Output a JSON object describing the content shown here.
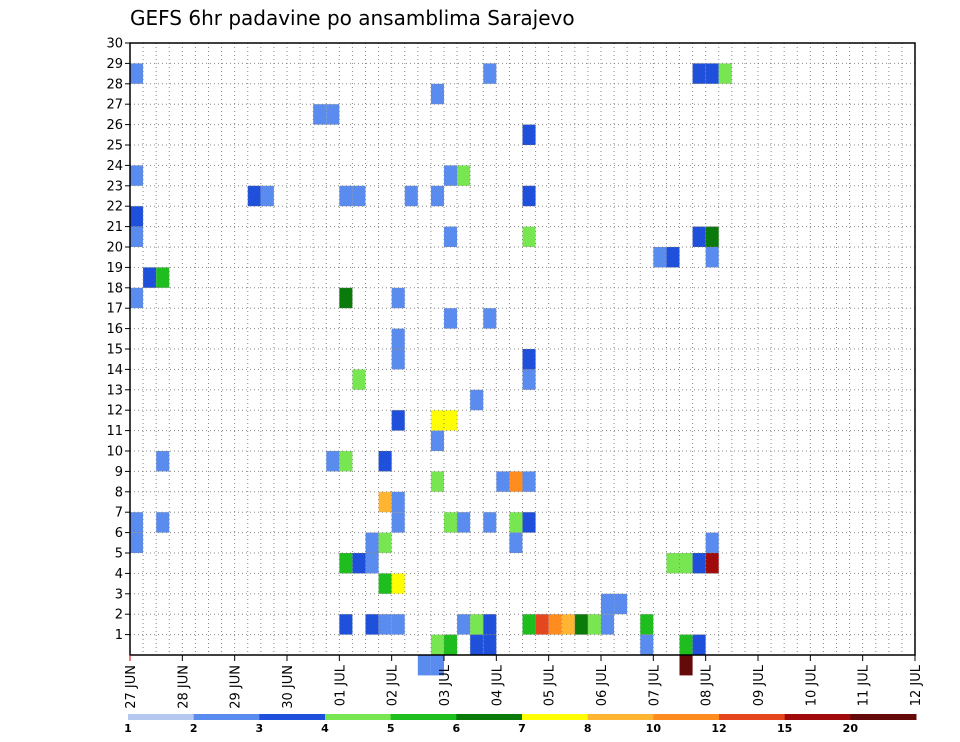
{
  "chart_data": {
    "type": "heatmap",
    "title": "GEFS 6hr padavine po ansamblima Sarajevo",
    "y_tick_labels": [
      "1",
      "2",
      "3",
      "4",
      "5",
      "6",
      "7",
      "8",
      "9",
      "10",
      "11",
      "12",
      "13",
      "14",
      "15",
      "16",
      "17",
      "18",
      "19",
      "20",
      "21",
      "22",
      "23",
      "24",
      "25",
      "26",
      "27",
      "28",
      "29",
      "30"
    ],
    "ylim": [
      0,
      30
    ],
    "x_tick_labels": [
      "27 JUN",
      "28 JUN",
      "29 JUN",
      "30 JUN",
      "01 JUL",
      "02 JUL",
      "03 JUL",
      "04 JUL",
      "05 JUL",
      "06 JUL",
      "07 JUL",
      "08 JUL",
      "09 JUL",
      "10 JUL",
      "11 JUL",
      "12 JUL"
    ],
    "x_steps_per_day": 4,
    "x_range_steps": [
      0,
      60
    ],
    "grid": true,
    "colorbar": {
      "labels": [
        "1",
        "2",
        "3",
        "4",
        "5",
        "6",
        "7",
        "8",
        "10",
        "12",
        "15",
        "20"
      ],
      "colors": [
        "#b4c8f0",
        "#5a8cf0",
        "#1e50dc",
        "#78e650",
        "#1ebe1e",
        "#0a7a0a",
        "#ffff00",
        "#ffb432",
        "#ff8c1e",
        "#e6461e",
        "#a00a0a",
        "#640a0a"
      ]
    },
    "cells": [
      [
        0,
        5,
        1
      ],
      [
        0,
        6,
        1
      ],
      [
        0,
        17,
        1
      ],
      [
        0,
        20,
        1
      ],
      [
        0,
        21,
        2
      ],
      [
        0,
        23,
        1
      ],
      [
        0,
        28,
        1
      ],
      [
        1,
        18,
        2
      ],
      [
        2,
        18,
        4
      ],
      [
        2,
        9,
        1
      ],
      [
        2,
        6,
        1
      ],
      [
        9,
        22,
        2
      ],
      [
        10,
        22,
        1
      ],
      [
        14,
        26,
        1
      ],
      [
        15,
        26,
        1
      ],
      [
        15,
        9,
        1
      ],
      [
        16,
        9,
        3
      ],
      [
        16,
        4,
        4
      ],
      [
        17,
        4,
        2
      ],
      [
        18,
        4,
        1
      ],
      [
        16,
        17,
        5
      ],
      [
        16,
        22,
        1
      ],
      [
        17,
        22,
        1
      ],
      [
        16,
        1,
        2
      ],
      [
        17,
        13,
        3
      ],
      [
        18,
        1,
        2
      ],
      [
        19,
        1,
        1
      ],
      [
        20,
        1,
        1
      ],
      [
        18,
        5,
        1
      ],
      [
        19,
        5,
        3
      ],
      [
        19,
        9,
        2
      ],
      [
        19,
        3,
        4
      ],
      [
        20,
        3,
        6
      ],
      [
        19,
        7,
        7
      ],
      [
        20,
        7,
        1
      ],
      [
        20,
        6,
        1
      ],
      [
        20,
        11,
        2
      ],
      [
        20,
        14,
        1
      ],
      [
        20,
        15,
        1
      ],
      [
        20,
        17,
        1
      ],
      [
        21,
        22,
        1
      ],
      [
        22,
        -1,
        1
      ],
      [
        23,
        -1,
        1
      ],
      [
        23,
        22,
        1
      ],
      [
        23,
        27,
        1
      ],
      [
        23,
        10,
        1
      ],
      [
        23,
        0,
        3
      ],
      [
        24,
        0,
        4
      ],
      [
        23,
        8,
        3
      ],
      [
        23,
        11,
        6
      ],
      [
        24,
        11,
        6
      ],
      [
        24,
        6,
        3
      ],
      [
        25,
        6,
        1
      ],
      [
        24,
        20,
        1
      ],
      [
        24,
        23,
        1
      ],
      [
        24,
        16,
        1
      ],
      [
        25,
        23,
        3
      ],
      [
        25,
        1,
        1
      ],
      [
        26,
        1,
        3
      ],
      [
        26,
        0,
        2
      ],
      [
        27,
        1,
        2
      ],
      [
        27,
        0,
        2
      ],
      [
        26,
        12,
        1
      ],
      [
        27,
        28,
        1
      ],
      [
        27,
        6,
        1
      ],
      [
        27,
        16,
        1
      ],
      [
        28,
        8,
        1
      ],
      [
        29,
        8,
        8
      ],
      [
        30,
        8,
        1
      ],
      [
        29,
        6,
        3
      ],
      [
        30,
        6,
        2
      ],
      [
        29,
        5,
        1
      ],
      [
        30,
        1,
        4
      ],
      [
        30,
        25,
        2
      ],
      [
        30,
        20,
        3
      ],
      [
        30,
        22,
        2
      ],
      [
        30,
        13,
        1
      ],
      [
        30,
        14,
        2
      ],
      [
        31,
        1,
        9
      ],
      [
        32,
        1,
        8
      ],
      [
        33,
        1,
        7
      ],
      [
        34,
        1,
        5
      ],
      [
        35,
        1,
        3
      ],
      [
        36,
        1,
        1
      ],
      [
        36,
        2,
        1
      ],
      [
        37,
        2,
        1
      ],
      [
        39,
        1,
        4
      ],
      [
        39,
        0,
        1
      ],
      [
        40,
        19,
        1
      ],
      [
        41,
        19,
        2
      ],
      [
        42,
        -1,
        11
      ],
      [
        42,
        0,
        4
      ],
      [
        43,
        0,
        2
      ],
      [
        41,
        4,
        3
      ],
      [
        42,
        4,
        3
      ],
      [
        43,
        4,
        2
      ],
      [
        44,
        4,
        10
      ],
      [
        43,
        28,
        2
      ],
      [
        44,
        28,
        2
      ],
      [
        45,
        28,
        3
      ],
      [
        43,
        20,
        2
      ],
      [
        44,
        20,
        5
      ],
      [
        44,
        19,
        1
      ],
      [
        44,
        5,
        1
      ]
    ]
  }
}
